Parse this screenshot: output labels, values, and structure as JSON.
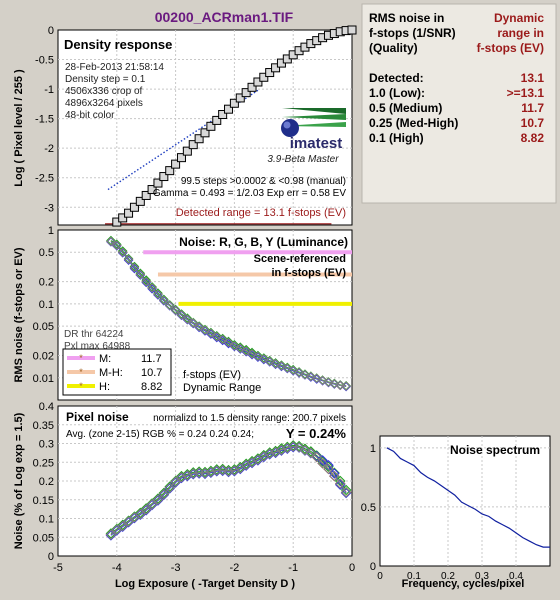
{
  "figure": {
    "file_title": "00200_ACRman1.TIF",
    "shared_xlabel": "Log Exposure ( -Target Density D )",
    "shared_x_ticks": [
      "-5",
      "-4",
      "-3",
      "-2",
      "-1",
      "0"
    ]
  },
  "info": {
    "header_left": [
      "RMS noise in",
      "f-stops (1/SNR)",
      "(Quality)"
    ],
    "header_right": [
      "Dynamic",
      "range in",
      "f-stops (EV)"
    ],
    "rows": [
      {
        "label": "Detected:",
        "value": "13.1"
      },
      {
        "label": "1.0  (Low):",
        "value": ">=13.1"
      },
      {
        "label": "0.5  (Medium)",
        "value": "11.7"
      },
      {
        "label": "0.25 (Med-High)",
        "value": "10.7"
      },
      {
        "label": "0.1   (High)",
        "value": "8.82"
      }
    ]
  },
  "density": {
    "title": "Density response",
    "info_lines": [
      "28-Feb-2013 21:58:14",
      "Density step = 0.1",
      "4506x336 crop of",
      "4896x3264 pixels",
      "48-bit color"
    ],
    "logo_text": "imatest",
    "version_text": "3.9-Beta  Master",
    "steps_text": "99.5 steps >0.0002 & <0.98 (manual)",
    "gamma_text": "Gamma = 0.493 = 1/2.03  Exp err = 0.58 EV",
    "detected_text": "Detected range = 13.1 f-stops (EV)",
    "ylabel": "Log ( Pixel level / 255 )",
    "y_ticks": [
      "0",
      "-0.5",
      "-1",
      "-1.5",
      "-2",
      "-2.5",
      "-3"
    ]
  },
  "noise": {
    "title": "Noise: R, G, B, Y (Luminance)",
    "subtitle": [
      "Scene-referenced",
      "in f-stops (EV)"
    ],
    "ylabel": "RMS noise (f-stops or EV)",
    "y_ticks": [
      "1",
      "0.5",
      "0.2",
      "0.1",
      "0.05",
      "0.02",
      "0.01"
    ],
    "dr_lines": [
      "DR thr 64224",
      "Pxl max 64988"
    ],
    "legend": [
      {
        "label": "M:",
        "value": "11.7",
        "color": "#f0a0f0"
      },
      {
        "label": "M-H:",
        "value": "10.7",
        "color": "#f5c8a8"
      },
      {
        "label": "H:",
        "value": "8.82",
        "color": "#f0f000"
      }
    ],
    "legend_note": [
      "f-stops (EV)",
      "Dynamic Range"
    ]
  },
  "pixel": {
    "title": "Pixel noise",
    "norm_text": "normalizd to 1.5 density range: 200.7 pixels",
    "avg_text": "Avg. (zone 2-15) RGB % = 0.24  0.24  0.24;",
    "y_text": "Y = 0.24%",
    "ylabel": "Noise (% of Log exp = 1.5)",
    "y_ticks": [
      "0.4",
      "0.35",
      "0.3",
      "0.25",
      "0.2",
      "0.15",
      "0.1",
      "0.05",
      "0"
    ]
  },
  "spectrum": {
    "title": "Noise spectrum",
    "xlabel": "Frequency, cycles/pixel",
    "x_ticks": [
      "0",
      "0.1",
      "0.2",
      "0.3",
      "0.4"
    ],
    "y_ticks": [
      "1",
      "0.5",
      "0"
    ]
  },
  "chart_data": [
    {
      "type": "scatter",
      "title": "Density response",
      "xlabel": "Log Exposure ( -Target Density D )",
      "ylabel": "Log ( Pixel level / 255 )",
      "xlim": [
        -5,
        0
      ],
      "ylim": [
        -3.3,
        0
      ],
      "x": [
        -4.0,
        -3.9,
        -3.8,
        -3.7,
        -3.6,
        -3.5,
        -3.4,
        -3.3,
        -3.2,
        -3.1,
        -3.0,
        -2.9,
        -2.8,
        -2.7,
        -2.6,
        -2.5,
        -2.4,
        -2.3,
        -2.2,
        -2.1,
        -2.0,
        -1.9,
        -1.8,
        -1.7,
        -1.6,
        -1.5,
        -1.4,
        -1.3,
        -1.2,
        -1.1,
        -1.0,
        -0.9,
        -0.8,
        -0.7,
        -0.6,
        -0.5,
        -0.4,
        -0.3,
        -0.2,
        -0.1,
        0.0
      ],
      "y": [
        -3.25,
        -3.18,
        -3.1,
        -3.0,
        -2.9,
        -2.8,
        -2.7,
        -2.59,
        -2.48,
        -2.38,
        -2.27,
        -2.16,
        -2.05,
        -1.94,
        -1.84,
        -1.74,
        -1.63,
        -1.53,
        -1.43,
        -1.34,
        -1.24,
        -1.15,
        -1.06,
        -0.97,
        -0.88,
        -0.8,
        -0.72,
        -0.64,
        -0.56,
        -0.49,
        -0.42,
        -0.35,
        -0.29,
        -0.23,
        -0.18,
        -0.13,
        -0.09,
        -0.06,
        -0.03,
        -0.01,
        0.0
      ],
      "reference_line": {
        "x": [
          -4.15,
          -1.6
        ],
        "y": [
          -2.7,
          -1.02
        ]
      }
    },
    {
      "type": "scatter",
      "title": "Noise: R, G, B, Y (Luminance)",
      "ylabel": "RMS noise (f-stops or EV)",
      "yscale": "log",
      "ylim": [
        0.005,
        1.0
      ],
      "xlim": [
        -5,
        0
      ],
      "x": [
        -4.1,
        -4.0,
        -3.9,
        -3.8,
        -3.7,
        -3.6,
        -3.5,
        -3.4,
        -3.3,
        -3.2,
        -3.1,
        -3.0,
        -2.9,
        -2.8,
        -2.7,
        -2.6,
        -2.5,
        -2.4,
        -2.3,
        -2.2,
        -2.1,
        -2.0,
        -1.9,
        -1.8,
        -1.7,
        -1.6,
        -1.5,
        -1.4,
        -1.3,
        -1.2,
        -1.1,
        -1.0,
        -0.9,
        -0.8,
        -0.7,
        -0.6,
        -0.5,
        -0.4,
        -0.3,
        -0.2,
        -0.1
      ],
      "series": [
        {
          "name": "R",
          "color": "#e03030",
          "y": [
            0.7,
            0.62,
            0.5,
            0.4,
            0.31,
            0.25,
            0.2,
            0.165,
            0.135,
            0.112,
            0.095,
            0.082,
            0.071,
            0.062,
            0.055,
            0.049,
            0.044,
            0.04,
            0.036,
            0.033,
            0.03,
            0.027,
            0.025,
            0.023,
            0.021,
            0.0195,
            0.018,
            0.0167,
            0.0155,
            0.0145,
            0.0135,
            0.0126,
            0.0118,
            0.011,
            0.0104,
            0.0098,
            0.0092,
            0.0087,
            0.0083,
            0.0079,
            0.0077
          ]
        },
        {
          "name": "G",
          "color": "#20a020",
          "y": [
            0.72,
            0.64,
            0.52,
            0.41,
            0.32,
            0.26,
            0.21,
            0.17,
            0.14,
            0.115,
            0.097,
            0.084,
            0.073,
            0.064,
            0.056,
            0.05,
            0.045,
            0.041,
            0.037,
            0.034,
            0.031,
            0.028,
            0.026,
            0.024,
            0.022,
            0.02,
            0.0185,
            0.0171,
            0.0159,
            0.0148,
            0.0138,
            0.0129,
            0.012,
            0.0112,
            0.0105,
            0.0099,
            0.0093,
            0.0088,
            0.0084,
            0.008,
            0.0078
          ]
        },
        {
          "name": "B",
          "color": "#3030e0",
          "y": [
            0.69,
            0.61,
            0.49,
            0.39,
            0.3,
            0.245,
            0.195,
            0.16,
            0.132,
            0.11,
            0.094,
            0.081,
            0.07,
            0.061,
            0.054,
            0.048,
            0.043,
            0.039,
            0.035,
            0.032,
            0.029,
            0.0265,
            0.0245,
            0.0225,
            0.0205,
            0.019,
            0.0176,
            0.0164,
            0.0152,
            0.0142,
            0.0133,
            0.0124,
            0.0116,
            0.0109,
            0.0102,
            0.0096,
            0.0091,
            0.0086,
            0.0082,
            0.0079,
            0.0076
          ]
        },
        {
          "name": "Y",
          "color": "#808080",
          "y": [
            0.7,
            0.62,
            0.5,
            0.4,
            0.31,
            0.25,
            0.2,
            0.165,
            0.135,
            0.112,
            0.095,
            0.082,
            0.071,
            0.062,
            0.055,
            0.049,
            0.044,
            0.04,
            0.036,
            0.033,
            0.03,
            0.027,
            0.025,
            0.023,
            0.021,
            0.0195,
            0.018,
            0.0167,
            0.0155,
            0.0145,
            0.0135,
            0.0126,
            0.0118,
            0.011,
            0.0104,
            0.0098,
            0.0092,
            0.0087,
            0.0083,
            0.0079,
            0.0077
          ]
        }
      ],
      "threshold_lines": [
        {
          "quality": "M",
          "y": 0.5,
          "x": [
            -3.55,
            0
          ],
          "color": "#f0a0f0"
        },
        {
          "quality": "M-H",
          "y": 0.25,
          "x": [
            -3.3,
            0
          ],
          "color": "#f5c8a8"
        },
        {
          "quality": "H",
          "y": 0.1,
          "x": [
            -2.95,
            0
          ],
          "color": "#f0f000"
        }
      ]
    },
    {
      "type": "scatter",
      "title": "Pixel noise",
      "ylabel": "Noise (% of Log exp = 1.5)",
      "xlim": [
        -5,
        0
      ],
      "ylim": [
        0,
        0.4
      ],
      "x": [
        -4.1,
        -4.0,
        -3.9,
        -3.8,
        -3.7,
        -3.6,
        -3.5,
        -3.4,
        -3.3,
        -3.2,
        -3.1,
        -3.0,
        -2.9,
        -2.8,
        -2.7,
        -2.6,
        -2.5,
        -2.4,
        -2.3,
        -2.2,
        -2.1,
        -2.0,
        -1.9,
        -1.8,
        -1.7,
        -1.6,
        -1.5,
        -1.4,
        -1.3,
        -1.2,
        -1.1,
        -1.0,
        -0.9,
        -0.8,
        -0.7,
        -0.6,
        -0.5,
        -0.4,
        -0.3,
        -0.2,
        -0.1
      ],
      "series": [
        {
          "name": "R",
          "color": "#e03030",
          "y": [
            0.057,
            0.07,
            0.08,
            0.092,
            0.103,
            0.112,
            0.124,
            0.138,
            0.15,
            0.165,
            0.182,
            0.198,
            0.21,
            0.215,
            0.22,
            0.222,
            0.221,
            0.224,
            0.228,
            0.229,
            0.226,
            0.228,
            0.234,
            0.243,
            0.25,
            0.257,
            0.266,
            0.273,
            0.277,
            0.283,
            0.288,
            0.292,
            0.29,
            0.282,
            0.275,
            0.264,
            0.247,
            0.232,
            0.213,
            0.193,
            0.17
          ]
        },
        {
          "name": "G",
          "color": "#20a020",
          "y": [
            0.06,
            0.072,
            0.083,
            0.094,
            0.105,
            0.115,
            0.127,
            0.14,
            0.153,
            0.168,
            0.185,
            0.2,
            0.213,
            0.218,
            0.223,
            0.225,
            0.224,
            0.227,
            0.231,
            0.232,
            0.229,
            0.231,
            0.237,
            0.246,
            0.253,
            0.26,
            0.269,
            0.276,
            0.28,
            0.287,
            0.291,
            0.295,
            0.293,
            0.286,
            0.279,
            0.268,
            0.252,
            0.238,
            0.222,
            0.2,
            0.176
          ]
        },
        {
          "name": "B",
          "color": "#3030e0",
          "y": [
            0.055,
            0.068,
            0.078,
            0.09,
            0.101,
            0.11,
            0.122,
            0.136,
            0.148,
            0.163,
            0.18,
            0.196,
            0.208,
            0.213,
            0.218,
            0.22,
            0.219,
            0.222,
            0.226,
            0.227,
            0.224,
            0.226,
            0.232,
            0.241,
            0.248,
            0.255,
            0.264,
            0.271,
            0.275,
            0.281,
            0.286,
            0.29,
            0.289,
            0.281,
            0.274,
            0.266,
            0.255,
            0.242,
            0.22,
            0.19,
            0.168
          ]
        },
        {
          "name": "Y",
          "color": "#808080",
          "y": [
            0.057,
            0.07,
            0.08,
            0.092,
            0.103,
            0.112,
            0.124,
            0.138,
            0.15,
            0.165,
            0.182,
            0.198,
            0.21,
            0.215,
            0.22,
            0.222,
            0.221,
            0.224,
            0.228,
            0.229,
            0.226,
            0.228,
            0.234,
            0.243,
            0.25,
            0.257,
            0.266,
            0.273,
            0.277,
            0.283,
            0.288,
            0.292,
            0.29,
            0.282,
            0.275,
            0.264,
            0.247,
            0.232,
            0.213,
            0.193,
            0.17
          ]
        }
      ]
    },
    {
      "type": "line",
      "title": "Noise spectrum",
      "xlabel": "Frequency, cycles/pixel",
      "xlim": [
        0,
        0.5
      ],
      "ylim": [
        0,
        1.1
      ],
      "x": [
        0.02,
        0.04,
        0.06,
        0.08,
        0.1,
        0.12,
        0.14,
        0.16,
        0.18,
        0.2,
        0.22,
        0.24,
        0.26,
        0.28,
        0.3,
        0.32,
        0.34,
        0.36,
        0.38,
        0.4,
        0.42,
        0.44,
        0.46,
        0.48,
        0.5
      ],
      "y": [
        1.0,
        0.97,
        0.91,
        0.88,
        0.85,
        0.79,
        0.75,
        0.72,
        0.68,
        0.64,
        0.6,
        0.54,
        0.51,
        0.48,
        0.44,
        0.42,
        0.38,
        0.35,
        0.32,
        0.28,
        0.24,
        0.21,
        0.18,
        0.16,
        0.16
      ]
    }
  ]
}
